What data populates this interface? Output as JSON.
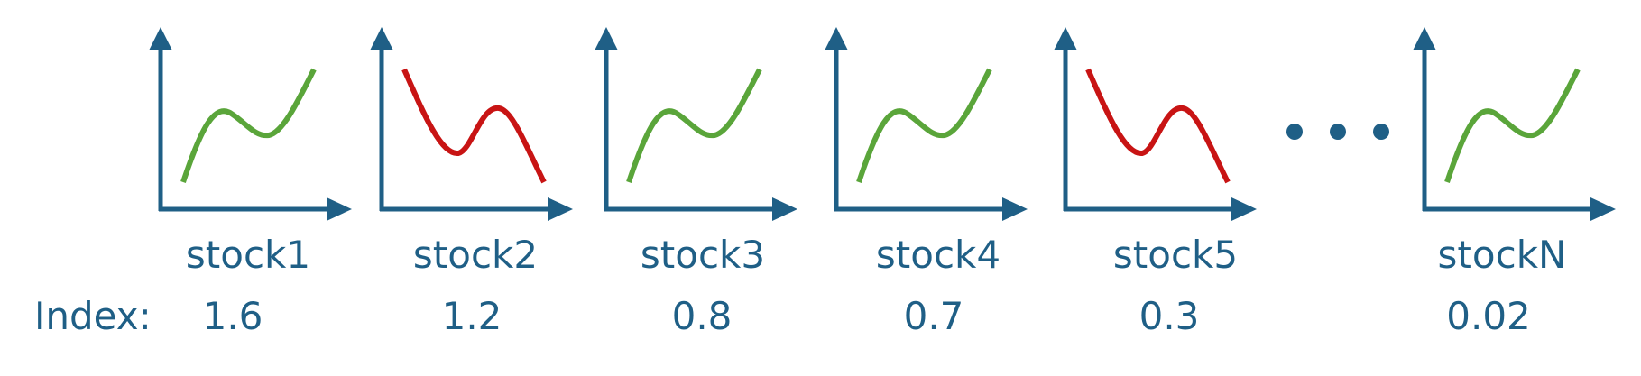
{
  "colors": {
    "axis": "#1f5f86",
    "up": "#5aa53a",
    "down": "#c81414",
    "text": "#1f5f86"
  },
  "index_label": "Index:",
  "stocks": [
    {
      "name": "stock1",
      "index": "1.6",
      "trend": "up"
    },
    {
      "name": "stock2",
      "index": "1.2",
      "trend": "down"
    },
    {
      "name": "stock3",
      "index": "0.8",
      "trend": "up"
    },
    {
      "name": "stock4",
      "index": "0.7",
      "trend": "up"
    },
    {
      "name": "stock5",
      "index": "0.3",
      "trend": "down"
    },
    {
      "name": "stockN",
      "index": "0.02",
      "trend": "up"
    }
  ],
  "ellipsis": "dots"
}
